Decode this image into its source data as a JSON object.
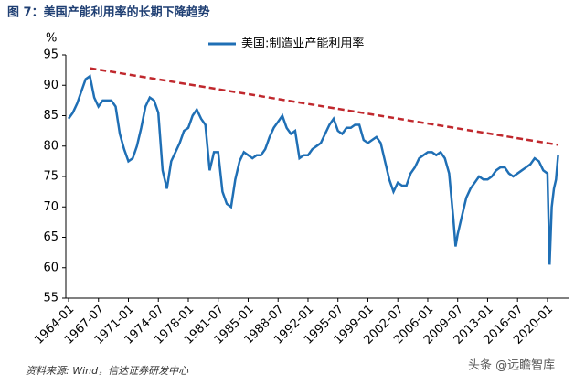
{
  "chart_data": {
    "type": "line",
    "title": "图 7：美国产能利用率的长期下降趋势",
    "y_label": "%",
    "source": "资料来源: Wind，信达证券研发中心",
    "watermark": "头条 @远瞻智库",
    "legend_position": "top",
    "grid": false,
    "ylim": [
      55,
      95
    ],
    "yticks": [
      55,
      60,
      65,
      70,
      75,
      80,
      85,
      90,
      95
    ],
    "xlim": [
      "1964-01",
      "2022-04"
    ],
    "xticks": [
      "1964-01",
      "1967-07",
      "1971-01",
      "1974-07",
      "1978-01",
      "1981-07",
      "1985-01",
      "1988-07",
      "1992-01",
      "1995-07",
      "1999-01",
      "2002-07",
      "2006-01",
      "2009-07",
      "2013-01",
      "2016-07",
      "2020-01"
    ],
    "series": [
      {
        "name": "美国:制造业产能利用率",
        "color": "#1f6fb5",
        "style": "solid",
        "x": [
          "1964-01",
          "1964-07",
          "1965-01",
          "1965-07",
          "1966-01",
          "1966-07",
          "1967-01",
          "1967-07",
          "1968-01",
          "1968-07",
          "1969-01",
          "1969-07",
          "1970-01",
          "1970-07",
          "1971-01",
          "1971-07",
          "1972-01",
          "1972-07",
          "1973-01",
          "1973-07",
          "1974-01",
          "1974-07",
          "1975-01",
          "1975-07",
          "1976-01",
          "1976-07",
          "1977-01",
          "1977-07",
          "1978-01",
          "1978-07",
          "1979-01",
          "1979-07",
          "1980-01",
          "1980-07",
          "1981-01",
          "1981-07",
          "1982-01",
          "1982-07",
          "1983-01",
          "1983-07",
          "1984-01",
          "1984-07",
          "1985-01",
          "1985-07",
          "1986-01",
          "1986-07",
          "1987-01",
          "1987-07",
          "1988-01",
          "1988-07",
          "1989-01",
          "1989-07",
          "1990-01",
          "1990-07",
          "1991-01",
          "1991-07",
          "1992-01",
          "1992-07",
          "1993-01",
          "1993-07",
          "1994-01",
          "1994-07",
          "1995-01",
          "1995-07",
          "1996-01",
          "1996-07",
          "1997-01",
          "1997-07",
          "1998-01",
          "1998-07",
          "1999-01",
          "1999-07",
          "2000-01",
          "2000-07",
          "2001-01",
          "2001-07",
          "2002-01",
          "2002-07",
          "2003-01",
          "2003-07",
          "2004-01",
          "2004-07",
          "2005-01",
          "2005-07",
          "2006-01",
          "2006-07",
          "2007-01",
          "2007-07",
          "2008-01",
          "2008-07",
          "2009-01",
          "2009-04",
          "2009-07",
          "2010-01",
          "2010-07",
          "2011-01",
          "2011-07",
          "2012-01",
          "2012-07",
          "2013-01",
          "2013-07",
          "2014-01",
          "2014-07",
          "2015-01",
          "2015-07",
          "2016-01",
          "2016-07",
          "2017-01",
          "2017-07",
          "2018-01",
          "2018-07",
          "2019-01",
          "2019-07",
          "2020-01",
          "2020-04",
          "2020-07",
          "2020-10",
          "2021-01",
          "2021-04"
        ],
        "values": [
          84.5,
          85.5,
          87,
          89,
          91,
          91.5,
          88,
          86.5,
          87.5,
          87.5,
          87.5,
          86.5,
          82,
          79.5,
          77.5,
          78,
          80,
          83,
          86.5,
          88,
          87.5,
          85.5,
          76,
          73,
          77.5,
          79,
          80.5,
          82.5,
          83,
          85,
          86,
          84.5,
          83.5,
          76,
          79,
          79,
          72.5,
          70.5,
          70,
          74.5,
          77.5,
          79,
          78.5,
          78,
          78.5,
          78.5,
          79.5,
          81.5,
          83,
          84,
          85,
          83,
          82,
          82.5,
          78,
          78.5,
          78.5,
          79.5,
          80,
          80.5,
          82,
          83.5,
          84.5,
          82.5,
          82,
          83,
          83,
          83.5,
          83.5,
          81,
          80.5,
          81,
          81.5,
          80.5,
          77.5,
          74.5,
          72.5,
          74,
          73.5,
          73.5,
          75.5,
          76.5,
          78,
          78.5,
          79,
          79,
          78.5,
          79,
          78,
          75.5,
          68,
          63.5,
          65.5,
          68.5,
          71.5,
          73,
          74,
          75,
          74.5,
          74.5,
          75,
          76,
          76.5,
          76.5,
          75.5,
          75,
          75.5,
          76,
          76.5,
          77,
          78,
          77.5,
          76,
          75.5,
          60.5,
          70,
          73,
          74.5,
          78.5
        ]
      },
      {
        "color": "#c0282d",
        "style": "dashed",
        "x": [
          "1966-07",
          "2021-04"
        ],
        "values": [
          92.8,
          80.2
        ]
      }
    ]
  }
}
